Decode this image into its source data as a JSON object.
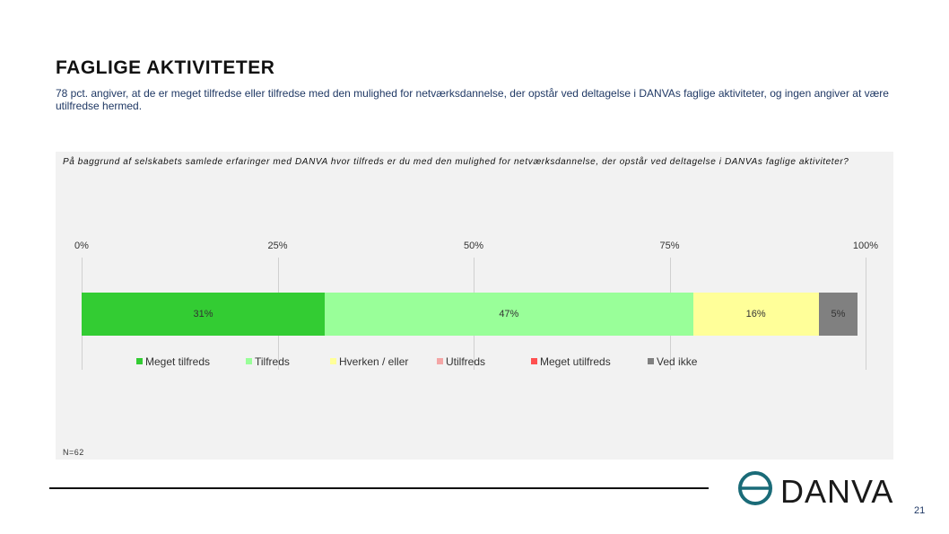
{
  "page": {
    "title": "FAGLIGE AKTIVITETER",
    "subtitle": "78 pct. angiver, at de er meget tilfredse eller tilfredse med den mulighed for netværksdannelse, der opstår ved deltagelse i DANVAs faglige aktiviteter, og ingen angiver at være utilfredse hermed.",
    "page_number": "21",
    "logo_text": "DANVA"
  },
  "chart_data": {
    "type": "bar",
    "orientation": "horizontal-stacked-100",
    "question": "På baggrund af selskabets samlede erfaringer med DANVA hvor tilfreds er du med den mulighed for netværksdannelse, der opstår ved deltagelse i DANVAs faglige aktiviteter?",
    "n_label": "N=62",
    "xlim": [
      0,
      100
    ],
    "ticks": [
      "0%",
      "25%",
      "50%",
      "75%",
      "100%"
    ],
    "tick_values": [
      0,
      25,
      50,
      75,
      100
    ],
    "legend_position": "bottom",
    "grid": true,
    "series": [
      {
        "name": "Meget tilfreds",
        "value": 31,
        "label": "31%",
        "color": "#33cc33"
      },
      {
        "name": "Tilfreds",
        "value": 47,
        "label": "47%",
        "color": "#99ff99"
      },
      {
        "name": "Hverken / eller",
        "value": 16,
        "label": "16%",
        "color": "#ffff99"
      },
      {
        "name": "Utilfreds",
        "value": 0,
        "label": "",
        "color": "#f4a6a6"
      },
      {
        "name": "Meget utilfreds",
        "value": 0,
        "label": "",
        "color": "#ff5050"
      },
      {
        "name": "Ved ikke",
        "value": 5,
        "label": "5%",
        "color": "#808080"
      }
    ]
  }
}
